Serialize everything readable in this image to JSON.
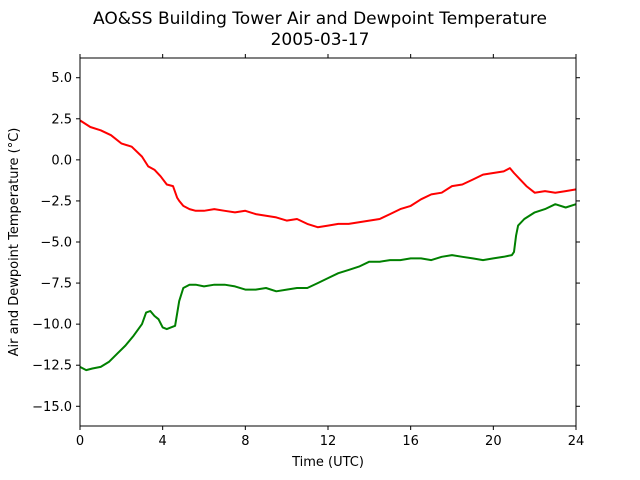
{
  "chart_data": {
    "type": "line",
    "title": "AO&SS Building Tower Air and Dewpoint Temperature",
    "subtitle": "2005-03-17",
    "xlabel": "Time (UTC)",
    "ylabel": "Air and Dewpoint Temperature (°C)",
    "xlim": [
      0,
      24
    ],
    "ylim": [
      -16.2,
      6.2
    ],
    "xticks": [
      0,
      4,
      8,
      12,
      16,
      20,
      24
    ],
    "xtick_labels": [
      "0",
      "4",
      "8",
      "12",
      "16",
      "20",
      "24"
    ],
    "yticks": [
      5.0,
      2.5,
      0.0,
      -2.5,
      -5.0,
      -7.5,
      -10.0,
      -12.5,
      -15.0
    ],
    "ytick_labels": [
      "5.0",
      "2.5",
      "0.0",
      "−2.5",
      "−5.0",
      "−7.5",
      "−10.0",
      "−12.5",
      "−15.0"
    ],
    "grid": false,
    "series": [
      {
        "color": "#ff0000",
        "x": [
          0,
          0.5,
          1,
          1.5,
          2,
          2.5,
          3,
          3.3,
          3.6,
          3.9,
          4.2,
          4.5,
          4.7,
          4.8,
          5.0,
          5.3,
          5.6,
          6.0,
          6.5,
          7,
          7.5,
          8,
          8.5,
          9,
          9.5,
          10,
          10.5,
          11,
          11.5,
          12,
          12.5,
          13,
          13.5,
          14,
          14.5,
          15,
          15.5,
          16,
          16.5,
          17,
          17.5,
          18,
          18.5,
          19,
          19.5,
          20,
          20.5,
          20.8,
          21,
          21.3,
          21.6,
          22,
          22.5,
          23,
          23.5,
          24
        ],
        "y": [
          2.4,
          2.0,
          1.8,
          1.5,
          1.0,
          0.8,
          0.2,
          -0.4,
          -0.6,
          -1.0,
          -1.5,
          -1.6,
          -2.3,
          -2.5,
          -2.8,
          -3.0,
          -3.1,
          -3.1,
          -3.0,
          -3.1,
          -3.2,
          -3.1,
          -3.3,
          -3.4,
          -3.5,
          -3.7,
          -3.6,
          -3.9,
          -4.1,
          -4.0,
          -3.9,
          -3.9,
          -3.8,
          -3.7,
          -3.6,
          -3.3,
          -3.0,
          -2.8,
          -2.4,
          -2.1,
          -2.0,
          -1.6,
          -1.5,
          -1.2,
          -0.9,
          -0.8,
          -0.7,
          -0.5,
          -0.8,
          -1.2,
          -1.6,
          -2.0,
          -1.9,
          -2.0,
          -1.9,
          -1.8
        ]
      },
      {
        "color": "#008000",
        "x": [
          0,
          0.3,
          0.6,
          1.0,
          1.4,
          1.8,
          2.2,
          2.6,
          3.0,
          3.2,
          3.4,
          3.6,
          3.8,
          4.0,
          4.2,
          4.4,
          4.6,
          4.8,
          5.0,
          5.3,
          5.6,
          6.0,
          6.5,
          7,
          7.5,
          8,
          8.5,
          9,
          9.5,
          10,
          10.5,
          11,
          11.5,
          12,
          12.5,
          13,
          13.5,
          14,
          14.5,
          15,
          15.5,
          16,
          16.5,
          17,
          17.5,
          18,
          18.5,
          19,
          19.5,
          20,
          20.5,
          20.9,
          21.0,
          21.1,
          21.2,
          21.5,
          22,
          22.5,
          23,
          23.5,
          24
        ],
        "y": [
          -12.6,
          -12.8,
          -12.7,
          -12.6,
          -12.3,
          -11.8,
          -11.3,
          -10.7,
          -10.0,
          -9.3,
          -9.2,
          -9.5,
          -9.7,
          -10.2,
          -10.3,
          -10.2,
          -10.1,
          -8.6,
          -7.8,
          -7.6,
          -7.6,
          -7.7,
          -7.6,
          -7.6,
          -7.7,
          -7.9,
          -7.9,
          -7.8,
          -8.0,
          -7.9,
          -7.8,
          -7.8,
          -7.5,
          -7.2,
          -6.9,
          -6.7,
          -6.5,
          -6.2,
          -6.2,
          -6.1,
          -6.1,
          -6.0,
          -6.0,
          -6.1,
          -5.9,
          -5.8,
          -5.9,
          -6.0,
          -6.1,
          -6.0,
          -5.9,
          -5.8,
          -5.6,
          -4.6,
          -4.0,
          -3.6,
          -3.2,
          -3.0,
          -2.7,
          -2.9,
          -2.7
        ]
      }
    ]
  }
}
